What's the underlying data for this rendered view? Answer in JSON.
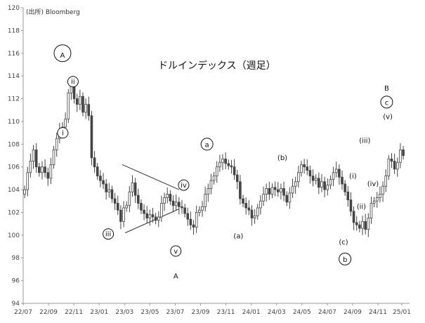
{
  "chart_data": {
    "type": "candlestick",
    "title": "ドルインデックス（週足）",
    "source": "(出所) Bloomberg",
    "ylim": [
      94,
      120
    ],
    "yticks": [
      94,
      96,
      98,
      100,
      102,
      104,
      106,
      108,
      110,
      112,
      114,
      116,
      118,
      120
    ],
    "xlim": [
      0,
      130
    ],
    "xticks": [
      {
        "label": "22/07",
        "x": 0
      },
      {
        "label": "22/09",
        "x": 8.7
      },
      {
        "label": "22/11",
        "x": 17.4
      },
      {
        "label": "23/01",
        "x": 26.1
      },
      {
        "label": "23/03",
        "x": 34.8
      },
      {
        "label": "23/05",
        "x": 43.5
      },
      {
        "label": "23/07",
        "x": 52.2
      },
      {
        "label": "23/09",
        "x": 60.9
      },
      {
        "label": "23/11",
        "x": 69.6
      },
      {
        "label": "24/01",
        "x": 78.3
      },
      {
        "label": "24/03",
        "x": 87
      },
      {
        "label": "24/05",
        "x": 95.7
      },
      {
        "label": "24/07",
        "x": 104.4
      },
      {
        "label": "24/09",
        "x": 113.1
      },
      {
        "label": "24/11",
        "x": 121.8
      },
      {
        "label": "25/01",
        "x": 130
      }
    ],
    "weekly_close": [
      104.0,
      105.5,
      106.5,
      107.5,
      106.0,
      105.5,
      106.0,
      105.5,
      105.0,
      106.2,
      107.5,
      108.5,
      109.2,
      109.5,
      110.2,
      112.5,
      113.2,
      112.0,
      111.5,
      112.2,
      110.8,
      111.5,
      110.5,
      106.8,
      106.0,
      105.2,
      104.8,
      104.5,
      103.8,
      104.0,
      103.2,
      102.8,
      102.2,
      101.2,
      102.4,
      102.6,
      103.8,
      104.6,
      103.5,
      102.8,
      102.2,
      101.9,
      101.5,
      101.8,
      101.6,
      101.3,
      101.6,
      102.8,
      103.3,
      103.6,
      103.0,
      102.6,
      102.9,
      102.5,
      102.4,
      101.9,
      101.4,
      100.9,
      100.7,
      102.0,
      102.2,
      102.5,
      103.6,
      104.1,
      104.8,
      105.2,
      106.0,
      106.4,
      106.7,
      106.3,
      106.1,
      106.0,
      105.3,
      104.7,
      103.2,
      102.8,
      102.4,
      102.2,
      101.5,
      101.7,
      102.4,
      103.0,
      103.6,
      104.1,
      103.6,
      104.2,
      104.0,
      103.8,
      104.1,
      103.5,
      102.9,
      103.7,
      104.3,
      104.7,
      105.5,
      106.2,
      106.0,
      105.7,
      105.2,
      104.8,
      105.0,
      104.2,
      104.7,
      104.0,
      104.4,
      104.9,
      105.5,
      105.8,
      105.1,
      104.5,
      103.8,
      103.1,
      102.1,
      101.1,
      100.9,
      100.6,
      101.2,
      100.5,
      101.5,
      102.8,
      103.0,
      103.3,
      103.6,
      104.3,
      105.2,
      106.7,
      106.5,
      105.8,
      106.4,
      107.5,
      107.0
    ],
    "annotations": [
      {
        "text": "A",
        "circled": true,
        "x": 13.5,
        "y": 116.0,
        "size": "big"
      },
      {
        "text": "ii",
        "circled": true,
        "x": 17.1,
        "y": 113.5
      },
      {
        "text": "i",
        "circled": true,
        "x": 13.6,
        "y": 109.0
      },
      {
        "text": "iii",
        "circled": true,
        "x": 29.2,
        "y": 100.1
      },
      {
        "text": "iv",
        "circled": true,
        "x": 55.1,
        "y": 104.4
      },
      {
        "text": "v",
        "circled": true,
        "x": 52.4,
        "y": 98.6
      },
      {
        "text": "A",
        "circled": false,
        "x": 52.4,
        "y": 96.6,
        "size": "big"
      },
      {
        "text": "a",
        "circled": true,
        "x": 63.1,
        "y": 108.0,
        "size": "mid"
      },
      {
        "text": "(a)",
        "circled": false,
        "x": 73.9,
        "y": 99.9
      },
      {
        "text": "(b)",
        "circled": false,
        "x": 89.0,
        "y": 106.8
      },
      {
        "text": "(c)",
        "circled": false,
        "x": 110.0,
        "y": 99.4
      },
      {
        "text": "b",
        "circled": true,
        "x": 110.5,
        "y": 97.9,
        "size": "mid"
      },
      {
        "text": "(i)",
        "circled": false,
        "x": 113.2,
        "y": 105.2
      },
      {
        "text": "(ii)",
        "circled": false,
        "x": 116.1,
        "y": 102.5
      },
      {
        "text": "(iii)",
        "circled": false,
        "x": 117.3,
        "y": 108.3
      },
      {
        "text": "(iv)",
        "circled": false,
        "x": 120.1,
        "y": 104.5
      },
      {
        "text": "(v)",
        "circled": false,
        "x": 125.2,
        "y": 110.4
      },
      {
        "text": "B",
        "circled": false,
        "x": 124.8,
        "y": 113.1,
        "size": "big"
      },
      {
        "text": "c",
        "circled": true,
        "x": 124.8,
        "y": 111.7,
        "size": "mid"
      }
    ],
    "trend_lines": [
      {
        "from": [
          34.0,
          106.2
        ],
        "to": [
          53.5,
          104.0
        ]
      },
      {
        "from": [
          35.0,
          100.2
        ],
        "to": [
          53.5,
          102.3
        ]
      }
    ],
    "colors": {
      "candle": "#444444",
      "axis": "#999999",
      "text": "#111111"
    },
    "grid": false
  }
}
